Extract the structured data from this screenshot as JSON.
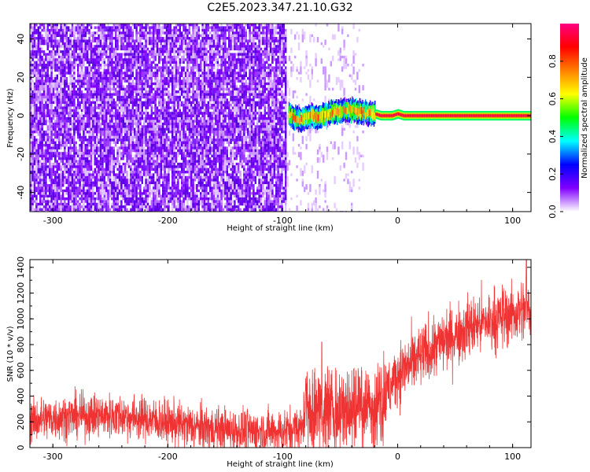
{
  "title": "C2E5.2023.347.21.10.G32",
  "chart_data": [
    {
      "type": "heatmap",
      "xlabel": "Height of straight line (km)",
      "ylabel": "Frequency (Hz)",
      "xlim": [
        -320,
        116
      ],
      "ylim": [
        -50,
        48
      ],
      "x_ticks": [
        -300,
        -200,
        -100,
        0,
        100
      ],
      "y_ticks": [
        -40,
        -20,
        0,
        20,
        40
      ],
      "colorbar": {
        "label": "Normalized spectral amplitude",
        "range": [
          0,
          1
        ],
        "ticks": [
          "0.0",
          "0.2",
          "0.4",
          "0.6",
          "0.8"
        ],
        "tick_values": [
          0,
          0.2,
          0.4,
          0.6,
          0.8
        ],
        "colormap": [
          "#ffffff",
          "#8000ff",
          "#0000ff",
          "#00ffff",
          "#00ff00",
          "#ffff00",
          "#ff8000",
          "#ff0000",
          "#ff0080"
        ]
      },
      "regions": [
        {
          "x": [
            -320,
            -97
          ],
          "description": "broadband noise across all frequencies"
        },
        {
          "x": [
            -97,
            -30
          ],
          "description": "sparse noise with signal near 0 Hz"
        },
        {
          "x": [
            -30,
            116
          ],
          "description": "strong narrow signal near 0 Hz"
        }
      ],
      "signal_track": {
        "x": [
          -95,
          -90,
          -85,
          -80,
          -75,
          -70,
          -65,
          -60,
          -55,
          -50,
          -45,
          -40,
          -35,
          -30,
          -25,
          -20,
          -15,
          -10,
          -5,
          0,
          5,
          10,
          20,
          40,
          60,
          80,
          100,
          116
        ],
        "freq": [
          1,
          -1,
          -2,
          -1,
          0,
          -1,
          0,
          1,
          2,
          2,
          3,
          3,
          2,
          2,
          1,
          1,
          0,
          0,
          0,
          1,
          0,
          0,
          0,
          0,
          0,
          0,
          0,
          0
        ]
      }
    },
    {
      "type": "line",
      "xlabel": "Height of straight line (km)",
      "ylabel": "SNR (10 * v/v)",
      "xlim": [
        -320,
        116
      ],
      "ylim": [
        0,
        1460
      ],
      "x_ticks": [
        -300,
        -200,
        -100,
        0,
        100
      ],
      "y_ticks": [
        0,
        200,
        400,
        600,
        800,
        1000,
        1200,
        1400
      ],
      "color": "#ef3333",
      "series": [
        {
          "x": [
            -320,
            -300,
            -280,
            -260,
            -240,
            -220,
            -200,
            -180,
            -160,
            -140,
            -120,
            -100,
            -90,
            -82,
            -80,
            -60,
            -40,
            -20,
            -10,
            0,
            20,
            40,
            60,
            80,
            100,
            116
          ],
          "values": [
            210,
            230,
            245,
            250,
            245,
            225,
            195,
            165,
            145,
            130,
            125,
            130,
            150,
            160,
            240,
            260,
            240,
            270,
            400,
            580,
            700,
            830,
            930,
            980,
            1040,
            1080
          ]
        }
      ],
      "peaks": [
        {
          "x": -66,
          "y": 820
        },
        {
          "x": 112,
          "y": 1460
        }
      ]
    }
  ]
}
